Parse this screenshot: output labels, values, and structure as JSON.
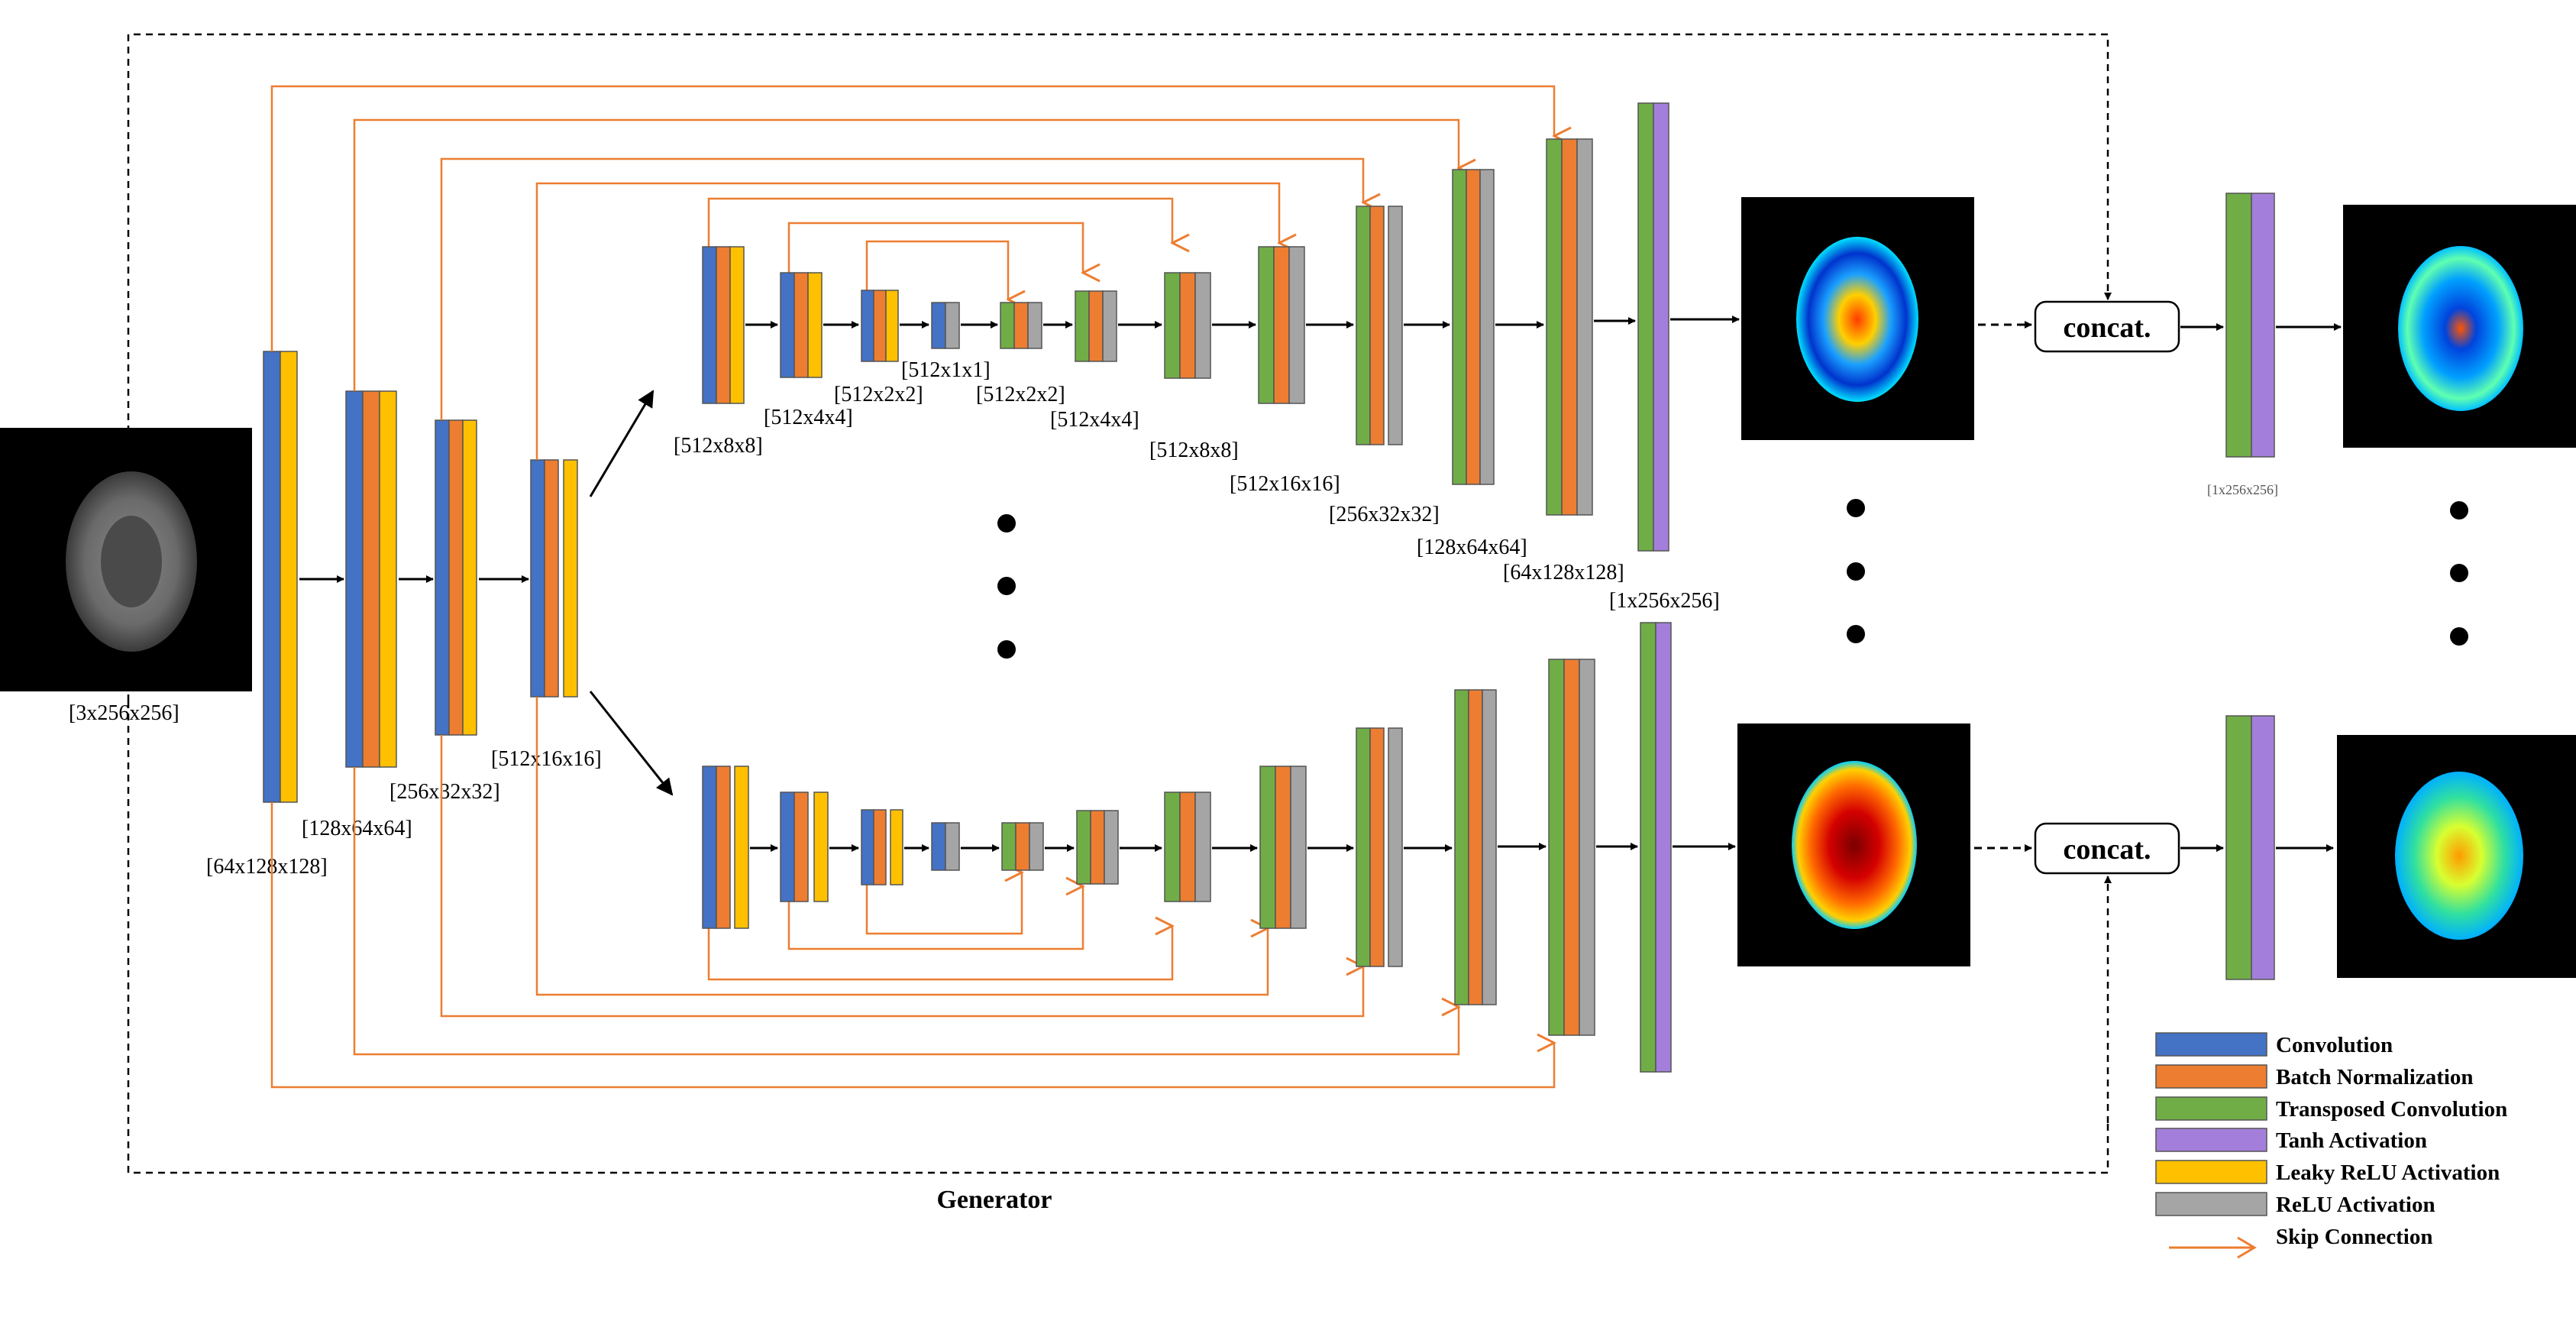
{
  "input_label": "[3x256x256]",
  "encoder_labels": [
    "[64x128x128]",
    "[128x64x64]",
    "[256x32x32]",
    "[512x16x16]"
  ],
  "top_branch_labels": [
    "[512x8x8]",
    "[512x4x4]",
    "[512x2x2]",
    "[512x1x1]",
    "[512x2x2]",
    "[512x4x4]",
    "[512x8x8]",
    "[512x16x16]",
    "[256x32x32]",
    "[128x64x64]",
    "[64x128x128]",
    "[1x256x256]"
  ],
  "refiner_label": "[1x256x256]",
  "concat_label": "concat.",
  "generator_label": "Generator",
  "legend": [
    {
      "label": "Convolution",
      "color": "#4472C4"
    },
    {
      "label": "Batch  Normalization",
      "color": "#ED7D31"
    },
    {
      "label": "Transposed  Convolution",
      "color": "#70AD47"
    },
    {
      "label": "Tanh Activation",
      "color": "#A37FDB"
    },
    {
      "label": "Leaky  ReLU  Activation",
      "color": "#FFC000"
    },
    {
      "label": "ReLU  Activation",
      "color": "#A5A5A5"
    },
    {
      "label": "Skip Connection",
      "color": "#ED7D31"
    }
  ],
  "colors": {
    "conv": "#4472C4",
    "bn": "#ED7D31",
    "tconv": "#70AD47",
    "tanh": "#A37FDB",
    "lrelu": "#FFC000",
    "relu": "#A5A5A5",
    "skip": "#ED7D31"
  }
}
